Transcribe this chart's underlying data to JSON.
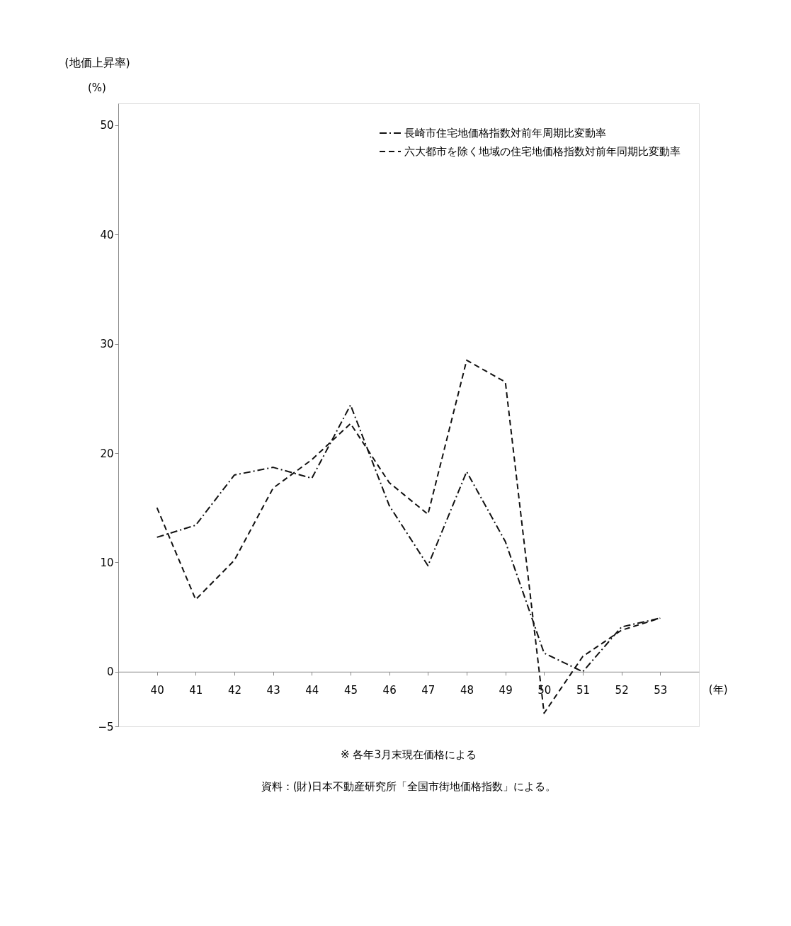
{
  "chart_data": {
    "type": "line",
    "ylabel": "(地価上昇率)",
    "xlabel": "(年)",
    "categories": [
      "40",
      "41",
      "42",
      "43",
      "44",
      "45",
      "46",
      "47",
      "48",
      "49",
      "50",
      "51",
      "52",
      "53"
    ],
    "series": [
      {
        "name": "長崎市住宅地価格指数対前年周期比変動率",
        "color": "#111111",
        "line_style": "dashdot",
        "values": [
          12.3,
          13.4,
          18.0,
          18.7,
          17.7,
          24.4,
          15.2,
          9.7,
          18.3,
          11.9,
          1.7,
          0,
          4.1,
          4.9
        ]
      },
      {
        "name": "六大都市を除く地域の住宅地価格指数対前年同期比変動率",
        "color": "#111111",
        "line_style": "dashed",
        "values": [
          15.0,
          6.6,
          10.2,
          16.8,
          19.4,
          22.7,
          17.3,
          14.4,
          28.5,
          26.5,
          -3.8,
          1.4,
          3.8,
          4.9
        ]
      }
    ],
    "ylim": [
      -5,
      52
    ],
    "yticks": [
      -5,
      0,
      10,
      20,
      30,
      40,
      50
    ],
    "grid": false,
    "legend": "top right",
    "marker": "none",
    "annotations": [
      "(%)",
      "※ 各年3月末現在価格による",
      "資料：(財)日本不動産研究所「全国市街地価格指数」による。"
    ]
  }
}
